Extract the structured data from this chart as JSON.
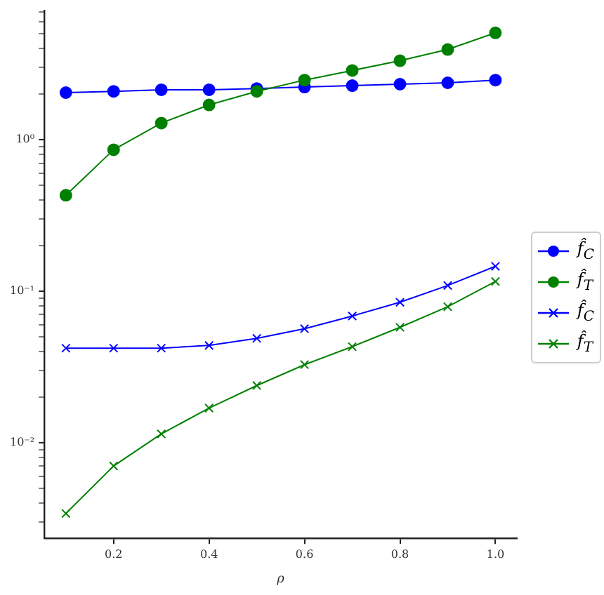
{
  "chart_data": {
    "type": "line",
    "xlabel": "ρ",
    "log": "y",
    "grid": false,
    "legend": "right",
    "x": [
      0.1,
      0.2,
      0.3,
      0.4,
      0.5,
      0.6,
      0.7,
      0.8,
      0.9,
      1.0
    ],
    "xlim": [
      0.055,
      1.045
    ],
    "xticks": [
      0.2,
      0.4,
      0.6,
      0.8,
      {
        "value": 1.0,
        "label": "1.0"
      }
    ],
    "ylim": [
      0.00233,
      7.1
    ],
    "yticks": [
      {
        "value": 0.003,
        "label": null
      },
      {
        "value": 0.004,
        "label": null
      },
      {
        "value": 0.005,
        "label": null
      },
      {
        "value": 0.006,
        "label": null
      },
      {
        "value": 0.007,
        "label": null
      },
      {
        "value": 0.008,
        "label": null
      },
      {
        "value": 0.009,
        "label": null
      },
      {
        "value": 0.01,
        "label": "10⁻²"
      },
      {
        "value": 0.02,
        "label": null
      },
      {
        "value": 0.03,
        "label": null
      },
      {
        "value": 0.04,
        "label": null
      },
      {
        "value": 0.05,
        "label": null
      },
      {
        "value": 0.06,
        "label": null
      },
      {
        "value": 0.07,
        "label": null
      },
      {
        "value": 0.08,
        "label": null
      },
      {
        "value": 0.09,
        "label": null
      },
      {
        "value": 0.1,
        "label": "10⁻¹"
      },
      {
        "value": 0.2,
        "label": null
      },
      {
        "value": 0.3,
        "label": null
      },
      {
        "value": 0.4,
        "label": null
      },
      {
        "value": 0.5,
        "label": null
      },
      {
        "value": 0.6,
        "label": null
      },
      {
        "value": 0.7,
        "label": null
      },
      {
        "value": 0.8,
        "label": null
      },
      {
        "value": 0.9,
        "label": null
      },
      {
        "value": 1,
        "label": "10⁰"
      },
      {
        "value": 2,
        "label": null
      },
      {
        "value": 3,
        "label": null
      },
      {
        "value": 4,
        "label": null
      },
      {
        "value": 5,
        "label": null
      },
      {
        "value": 6,
        "label": null
      },
      {
        "value": 7,
        "label": null
      }
    ],
    "series": [
      {
        "name": "f̂$_{C}$",
        "color": "#0000ff",
        "marker": "circle",
        "values": [
          2.05,
          2.09,
          2.14,
          2.14,
          2.18,
          2.23,
          2.28,
          2.33,
          2.38,
          2.48
        ]
      },
      {
        "name": "f̂$_{T}$",
        "color": "#008000",
        "marker": "circle",
        "values": [
          0.43,
          0.86,
          1.29,
          1.7,
          2.09,
          2.48,
          2.87,
          3.33,
          3.95,
          5.09
        ]
      },
      {
        "name": "f̂$_{C}$",
        "color": "#0000ff",
        "marker": "cross",
        "values": [
          0.042,
          0.042,
          0.042,
          0.0438,
          0.0488,
          0.0565,
          0.0685,
          0.0845,
          0.109,
          0.146
        ]
      },
      {
        "name": "f̂$_{T}$",
        "color": "#008000",
        "marker": "cross",
        "values": [
          0.0034,
          0.007,
          0.0114,
          0.0169,
          0.0238,
          0.0327,
          0.043,
          0.0577,
          0.079,
          0.116
        ]
      }
    ]
  }
}
